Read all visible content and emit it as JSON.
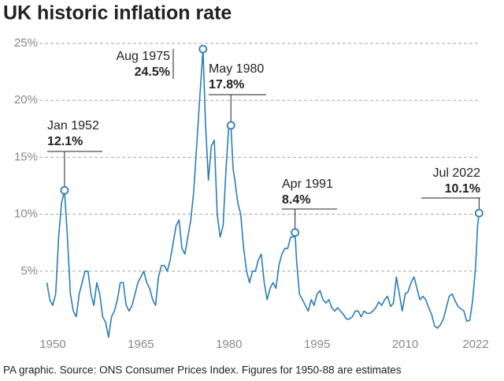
{
  "chart_data": {
    "type": "line",
    "title": "UK historic inflation rate",
    "source": "PA graphic. Source: ONS Consumer Prices Index. Figures for 1950-88 are estimates",
    "xlim": [
      1948.5,
      2022.8
    ],
    "xticks": [
      1950,
      1965,
      1980,
      1995,
      2010,
      2022
    ],
    "ylim": [
      -1,
      25
    ],
    "yticks": [
      {
        "value": 5,
        "label": "5%"
      },
      {
        "value": 10,
        "label": "10%"
      },
      {
        "value": 15,
        "label": "15%"
      },
      {
        "value": 20,
        "label": "20%"
      },
      {
        "value": 25,
        "label": "25%"
      }
    ],
    "grid": true,
    "series": [
      {
        "color": "#2b7db5",
        "x": [
          1949,
          1949.5,
          1950,
          1950.5,
          1951,
          1951.5,
          1952,
          1952.5,
          1953,
          1953.5,
          1954,
          1954.5,
          1955,
          1955.5,
          1956,
          1956.5,
          1957,
          1957.5,
          1958,
          1958.5,
          1959,
          1959.5,
          1960,
          1960.5,
          1961,
          1961.5,
          1962,
          1962.5,
          1963,
          1963.5,
          1964,
          1964.5,
          1965,
          1965.5,
          1966,
          1966.5,
          1967,
          1967.5,
          1968,
          1968.5,
          1969,
          1969.5,
          1970,
          1970.5,
          1971,
          1971.5,
          1972,
          1972.5,
          1973,
          1973.5,
          1974,
          1974.5,
          1975,
          1975.58,
          1976,
          1976.5,
          1977,
          1977.5,
          1978,
          1978.5,
          1979,
          1979.5,
          1980,
          1980.33,
          1980.7,
          1981,
          1981.5,
          1982,
          1982.5,
          1983,
          1983.5,
          1984,
          1984.5,
          1985,
          1985.5,
          1986,
          1986.5,
          1987,
          1987.5,
          1988,
          1988.5,
          1989,
          1989.5,
          1990,
          1990.5,
          1991,
          1991.25,
          1991.5,
          1992,
          1992.5,
          1993,
          1993.5,
          1994,
          1994.5,
          1995,
          1995.5,
          1996,
          1996.5,
          1997,
          1997.5,
          1998,
          1998.5,
          1999,
          1999.5,
          2000,
          2000.5,
          2001,
          2001.5,
          2002,
          2002.5,
          2003,
          2003.5,
          2004,
          2004.5,
          2005,
          2005.5,
          2006,
          2006.5,
          2007,
          2007.5,
          2008,
          2008.5,
          2009,
          2009.5,
          2010,
          2010.5,
          2011,
          2011.5,
          2012,
          2012.5,
          2013,
          2013.5,
          2014,
          2014.5,
          2015,
          2015.5,
          2016,
          2016.5,
          2017,
          2017.5,
          2018,
          2018.5,
          2019,
          2019.5,
          2020,
          2020.5,
          2021,
          2021.5,
          2022,
          2022.33,
          2022.58
        ],
        "values": [
          4,
          2.5,
          2,
          3,
          8,
          11,
          12.1,
          8,
          3,
          1.5,
          1,
          3,
          4,
          5,
          5,
          3,
          2,
          4,
          3,
          1,
          0.5,
          -0.8,
          1,
          1.5,
          2.5,
          4,
          4,
          2,
          1.5,
          2,
          3,
          4,
          4.5,
          5,
          4,
          3.5,
          2.5,
          2,
          4.5,
          5.5,
          5.5,
          5,
          6,
          7.5,
          9,
          9.5,
          7,
          6.5,
          8,
          9.5,
          12,
          16,
          20,
          24.5,
          18,
          13,
          16,
          16.5,
          10,
          8,
          9,
          14,
          18,
          17.8,
          14,
          13,
          11,
          10,
          7,
          5,
          4,
          5,
          5,
          6,
          6.5,
          4,
          2.5,
          3.5,
          4,
          3.5,
          5.5,
          6.5,
          7,
          7,
          8,
          8,
          8.4,
          6,
          3,
          2.5,
          2,
          1.5,
          2.5,
          2,
          3,
          3.3,
          2.5,
          2.2,
          2.5,
          1.8,
          1.5,
          1.8,
          1.5,
          1.2,
          0.8,
          0.8,
          1,
          1.5,
          1.5,
          1,
          1.5,
          1.3,
          1.3,
          1.5,
          1.8,
          2.3,
          2,
          2.5,
          2.8,
          1.9,
          2.2,
          4.5,
          3,
          1.5,
          3,
          3.2,
          4,
          4.5,
          3.5,
          2.5,
          2.8,
          2.5,
          1.8,
          1.2,
          0.2,
          0,
          0.3,
          0.8,
          1.8,
          2.8,
          3,
          2.4,
          1.9,
          1.7,
          1.5,
          0.6,
          0.7,
          2.5,
          5.5,
          9,
          10.1
        ]
      }
    ],
    "annotations": [
      {
        "label": "Jan 1952",
        "x": 1952,
        "value": 12.1,
        "value_label": "12.1%"
      },
      {
        "label": "Aug 1975",
        "x": 1975.58,
        "value": 24.5,
        "value_label": "24.5%"
      },
      {
        "label": "May 1980",
        "x": 1980.33,
        "value": 17.8,
        "value_label": "17.8%"
      },
      {
        "label": "Apr 1991",
        "x": 1991.25,
        "value": 8.4,
        "value_label": "8.4%"
      },
      {
        "label": "Jul 2022",
        "x": 2022.58,
        "value": 10.1,
        "value_label": "10.1%"
      }
    ]
  }
}
